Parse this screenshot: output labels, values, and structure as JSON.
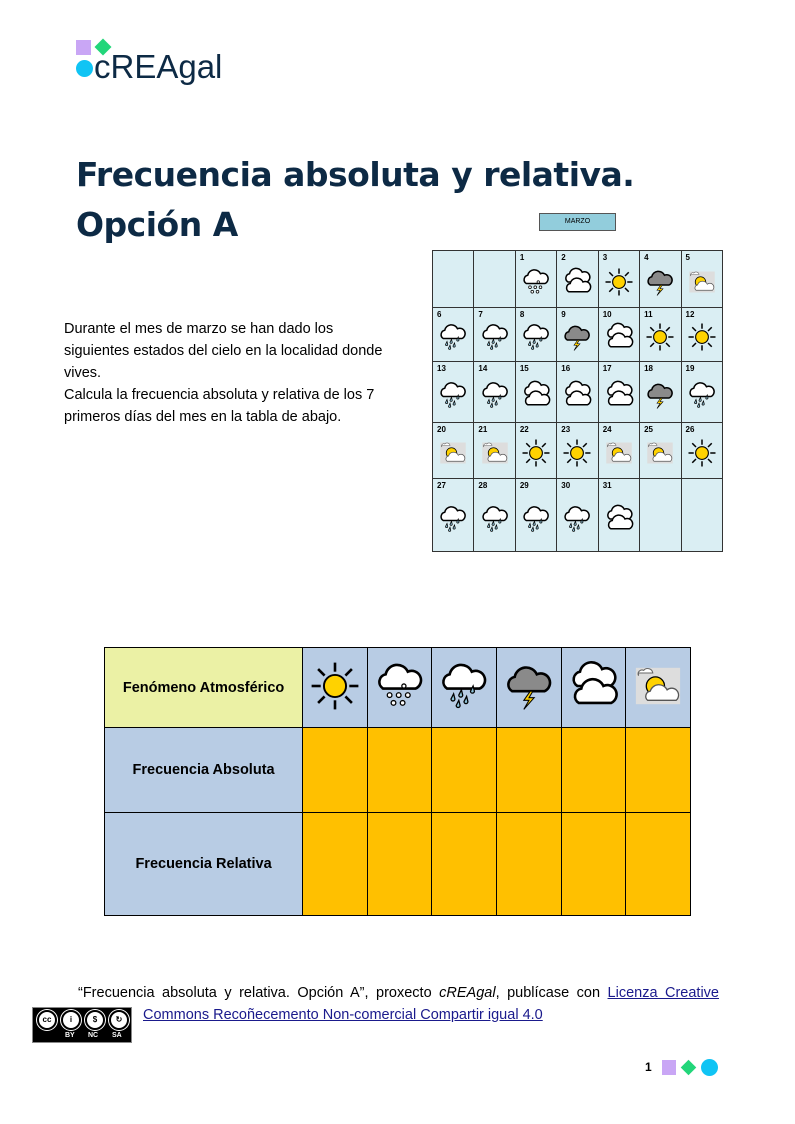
{
  "logo": {
    "text": "cREAgal"
  },
  "title": {
    "line1": "Frecuencia absoluta y relativa.",
    "line2": "Opción A"
  },
  "intro": {
    "p1": "Durante el mes de marzo se han dado los siguientes estados del  cielo en la localidad donde vives.",
    "p2": "Calcula la frecuencia absoluta y relativa de los 7 primeros días del mes en la tabla de abajo."
  },
  "calendar": {
    "month": "MARZO",
    "weeks": [
      [
        {
          "d": "",
          "i": ""
        },
        {
          "d": "",
          "i": ""
        },
        {
          "d": "1",
          "i": "snow"
        },
        {
          "d": "2",
          "i": "cloud"
        },
        {
          "d": "3",
          "i": "sun"
        },
        {
          "d": "4",
          "i": "storm"
        },
        {
          "d": "5",
          "i": "partly"
        }
      ],
      [
        {
          "d": "6",
          "i": "rain"
        },
        {
          "d": "7",
          "i": "rain"
        },
        {
          "d": "8",
          "i": "rain"
        },
        {
          "d": "9",
          "i": "storm"
        },
        {
          "d": "10",
          "i": "cloud"
        },
        {
          "d": "11",
          "i": "sun"
        },
        {
          "d": "12",
          "i": "sun"
        }
      ],
      [
        {
          "d": "13",
          "i": "rain"
        },
        {
          "d": "14",
          "i": "rain"
        },
        {
          "d": "15",
          "i": "cloud"
        },
        {
          "d": "16",
          "i": "cloud"
        },
        {
          "d": "17",
          "i": "cloud"
        },
        {
          "d": "18",
          "i": "storm"
        },
        {
          "d": "19",
          "i": "rain"
        }
      ],
      [
        {
          "d": "20",
          "i": "partly"
        },
        {
          "d": "21",
          "i": "partly"
        },
        {
          "d": "22",
          "i": "sun"
        },
        {
          "d": "23",
          "i": "sun"
        },
        {
          "d": "24",
          "i": "partly"
        },
        {
          "d": "25",
          "i": "partly"
        },
        {
          "d": "26",
          "i": "sun"
        }
      ],
      [
        {
          "d": "27",
          "i": "rain"
        },
        {
          "d": "28",
          "i": "rain"
        },
        {
          "d": "29",
          "i": "rain"
        },
        {
          "d": "30",
          "i": "rain"
        },
        {
          "d": "31",
          "i": "cloud"
        },
        {
          "d": "",
          "i": ""
        },
        {
          "d": "",
          "i": ""
        }
      ]
    ]
  },
  "table": {
    "row_headers": [
      "Fenómeno Atmosférico",
      "Frecuencia Absoluta",
      "Frecuencia Relativa"
    ],
    "phenomena": [
      "sun",
      "snow",
      "rain",
      "storm",
      "cloud",
      "partly"
    ],
    "absolute": [
      "",
      "",
      "",
      "",
      "",
      ""
    ],
    "relative": [
      "",
      "",
      "",
      "",
      "",
      ""
    ]
  },
  "footer": {
    "text_pre": "“Frecuencia absoluta y relativa. Opción A”, proxecto ",
    "project": "cREAgal",
    "text_mid": ", publícase con ",
    "link": "Licenza Creative Commons Recoñecemento Non-comercial Compartir igual 4.0",
    "cc_labels": [
      "BY",
      "NC",
      "SA"
    ]
  },
  "page_number": "1",
  "colors": {
    "header": "#b8cce4",
    "phenomenon_header": "#ebf1a5",
    "answer_cells": "#ffc000",
    "calendar_bg": "#daeef3",
    "title": "#0d2a45"
  }
}
